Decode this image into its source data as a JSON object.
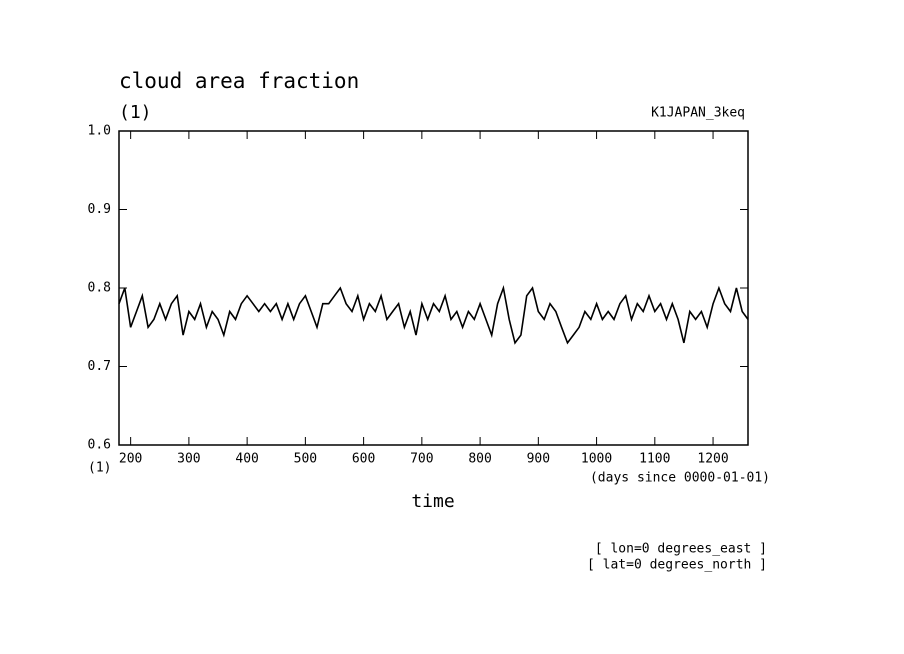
{
  "chart_data": {
    "type": "line",
    "title": "cloud area fraction",
    "y_unit": "(1)",
    "x_unit_corner": "(1)",
    "dataset": "K1JAPAN_3keq",
    "x_units": "(days since 0000-01-01)",
    "x_label": "time",
    "notes": [
      "[ lon=0 degrees_east ]",
      "[ lat=0 degrees_north ]"
    ],
    "xlim": [
      180,
      1260
    ],
    "xticks": [
      200,
      300,
      400,
      500,
      600,
      700,
      800,
      900,
      1000,
      1100,
      1200
    ],
    "ylim": [
      0.6,
      1
    ],
    "yticks": [
      0.6,
      0.7,
      0.8,
      0.9,
      {
        "value": 1,
        "label": "1.0"
      }
    ],
    "series": [
      {
        "color": "#000000",
        "x": [
          180,
          190,
          200,
          210,
          220,
          230,
          240,
          250,
          260,
          270,
          280,
          290,
          300,
          310,
          320,
          330,
          340,
          350,
          360,
          370,
          380,
          390,
          400,
          410,
          420,
          430,
          440,
          450,
          460,
          470,
          480,
          490,
          500,
          510,
          520,
          530,
          540,
          550,
          560,
          570,
          580,
          590,
          600,
          610,
          620,
          630,
          640,
          650,
          660,
          670,
          680,
          690,
          700,
          710,
          720,
          730,
          740,
          750,
          760,
          770,
          780,
          790,
          800,
          810,
          820,
          830,
          840,
          850,
          860,
          870,
          880,
          890,
          900,
          910,
          920,
          930,
          940,
          950,
          960,
          970,
          980,
          990,
          1000,
          1010,
          1020,
          1030,
          1040,
          1050,
          1060,
          1070,
          1080,
          1090,
          1100,
          1110,
          1120,
          1130,
          1140,
          1150,
          1160,
          1170,
          1180,
          1190,
          1200,
          1210,
          1220,
          1230,
          1240,
          1250,
          1260
        ],
        "values": [
          0.78,
          0.8,
          0.75,
          0.77,
          0.79,
          0.75,
          0.76,
          0.78,
          0.76,
          0.78,
          0.79,
          0.74,
          0.77,
          0.76,
          0.78,
          0.75,
          0.77,
          0.76,
          0.74,
          0.77,
          0.76,
          0.78,
          0.79,
          0.78,
          0.77,
          0.78,
          0.77,
          0.78,
          0.76,
          0.78,
          0.76,
          0.78,
          0.79,
          0.77,
          0.75,
          0.78,
          0.78,
          0.79,
          0.8,
          0.78,
          0.77,
          0.79,
          0.76,
          0.78,
          0.77,
          0.79,
          0.76,
          0.77,
          0.78,
          0.75,
          0.77,
          0.74,
          0.78,
          0.76,
          0.78,
          0.77,
          0.79,
          0.76,
          0.77,
          0.75,
          0.77,
          0.76,
          0.78,
          0.76,
          0.74,
          0.78,
          0.8,
          0.76,
          0.73,
          0.74,
          0.79,
          0.8,
          0.77,
          0.76,
          0.78,
          0.77,
          0.75,
          0.73,
          0.74,
          0.75,
          0.77,
          0.76,
          0.78,
          0.76,
          0.77,
          0.76,
          0.78,
          0.79,
          0.76,
          0.78,
          0.77,
          0.79,
          0.77,
          0.78,
          0.76,
          0.78,
          0.76,
          0.73,
          0.77,
          0.76,
          0.77,
          0.75,
          0.78,
          0.8,
          0.78,
          0.77,
          0.8,
          0.77,
          0.76
        ]
      }
    ]
  }
}
